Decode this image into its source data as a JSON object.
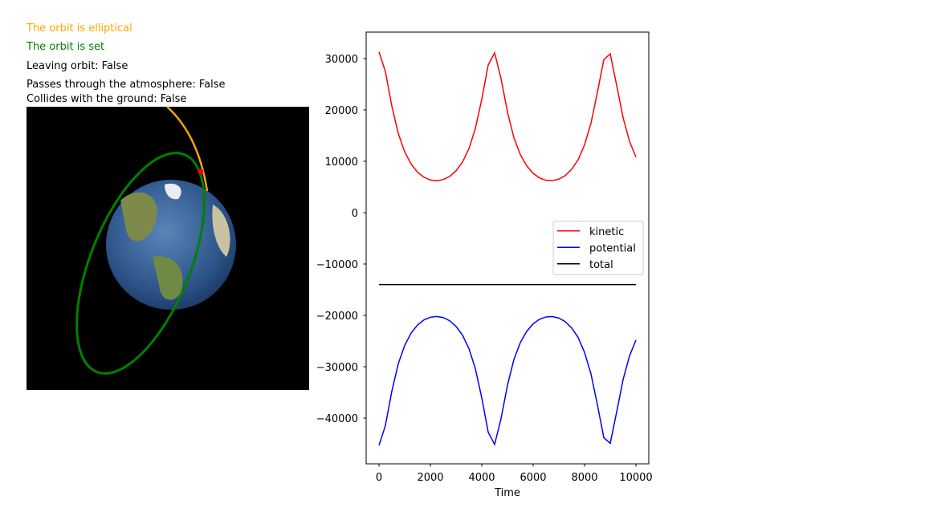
{
  "status": [
    {
      "text": "The orbit is elliptical",
      "color": "#ffa500"
    },
    {
      "text": "The orbit is set",
      "color": "#008000"
    },
    {
      "text": "Leaving orbit: False",
      "color": "#000000"
    },
    {
      "text": "Passes through the atmosphere: False",
      "color": "#000000"
    },
    {
      "text": "Collides with the ground: False",
      "color": "#000000"
    }
  ],
  "chart_data": {
    "type": "line",
    "xlabel": "Time",
    "x": [
      0,
      250,
      500,
      750,
      1000,
      1250,
      1500,
      1750,
      2000,
      2250,
      2500,
      2750,
      3000,
      3250,
      3500,
      3750,
      4000,
      4250,
      4500,
      4750,
      5000,
      5250,
      5500,
      5750,
      6000,
      6250,
      6500,
      6750,
      7000,
      7250,
      7500,
      7750,
      8000,
      8250,
      8500,
      8750,
      9000,
      9250,
      9500,
      9750,
      10000
    ],
    "series": [
      {
        "name": "kinetic",
        "color": "#ff0000",
        "values": [
          31300,
          27440,
          20750,
          15420,
          11840,
          9450,
          7870,
          6890,
          6360,
          6210,
          6430,
          7050,
          8150,
          9850,
          12450,
          16380,
          22060,
          28740,
          31120,
          26100,
          19600,
          14600,
          11300,
          9100,
          7650,
          6750,
          6300,
          6230,
          6520,
          7220,
          8450,
          10300,
          13200,
          17400,
          23400,
          29800,
          30900,
          24800,
          18500,
          13900,
          10800
        ]
      },
      {
        "name": "potential",
        "color": "#0000ff",
        "values": [
          -45300,
          -41440,
          -34750,
          -29420,
          -25840,
          -23450,
          -21870,
          -20890,
          -20360,
          -20210,
          -20430,
          -21050,
          -22150,
          -23850,
          -26450,
          -30380,
          -36060,
          -42740,
          -45120,
          -40100,
          -33600,
          -28600,
          -25300,
          -23100,
          -21650,
          -20750,
          -20300,
          -20230,
          -20520,
          -21220,
          -22450,
          -24300,
          -27200,
          -31400,
          -37400,
          -43800,
          -44900,
          -38800,
          -32500,
          -27900,
          -24800
        ]
      },
      {
        "name": "total",
        "color": "#000000",
        "values": [
          -14000,
          -14000,
          -14000,
          -14000,
          -14000,
          -14000,
          -14000,
          -14000,
          -14000,
          -14000,
          -14000,
          -14000,
          -14000,
          -14000,
          -14000,
          -14000,
          -14000,
          -14000,
          -14000,
          -14000,
          -14000,
          -14000,
          -14000,
          -14000,
          -14000,
          -14000,
          -14000,
          -14000,
          -14000,
          -14000,
          -14000,
          -14000,
          -14000,
          -14000,
          -14000,
          -14000,
          -14000,
          -14000,
          -14000,
          -14000,
          -14000
        ]
      }
    ],
    "xlim": [
      -500,
      10500
    ],
    "xticks": [
      0,
      2000,
      4000,
      6000,
      8000,
      10000
    ],
    "ylim": [
      -48900,
      35150
    ],
    "yticks": [
      {
        "value": -40000,
        "label": "−40000"
      },
      {
        "value": -30000,
        "label": "−30000"
      },
      {
        "value": -20000,
        "label": "−20000"
      },
      {
        "value": -10000,
        "label": "−10000"
      },
      0,
      10000,
      20000,
      30000
    ],
    "legend": "center right",
    "grid": false
  }
}
